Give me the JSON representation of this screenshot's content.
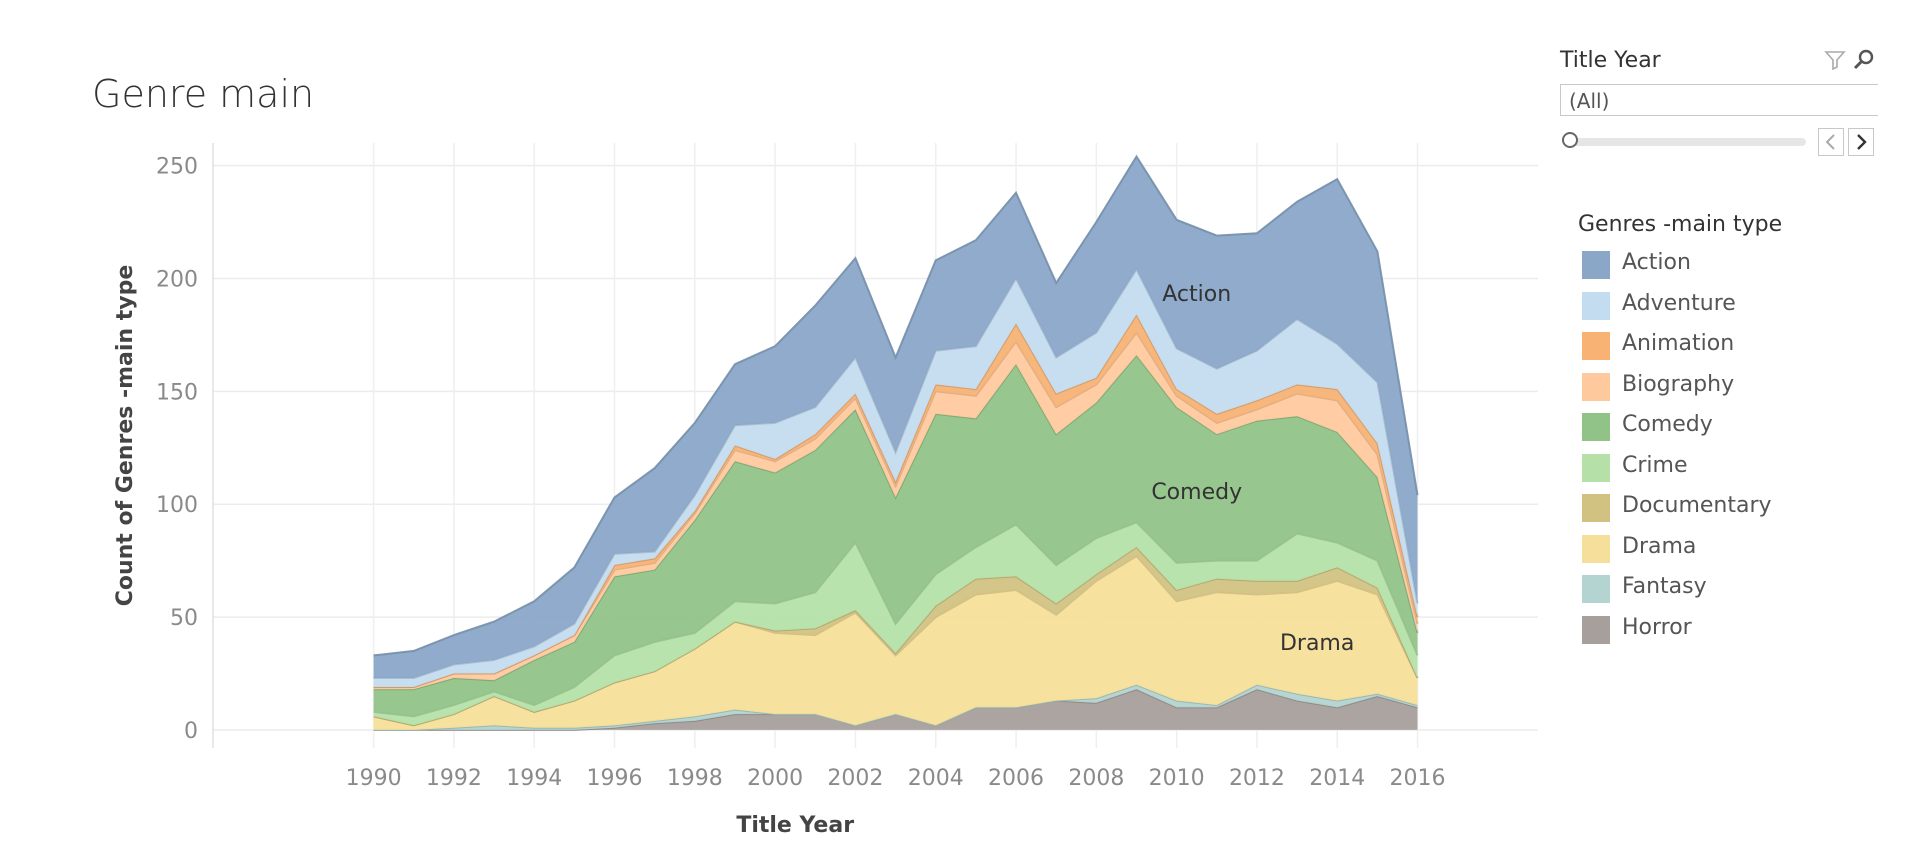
{
  "chart_data": {
    "type": "area",
    "stacked": true,
    "title": "Genre main",
    "xlabel": "Title Year",
    "ylabel": "Count of Genres -main type",
    "ylim": [
      0,
      260
    ],
    "yticks": [
      0,
      50,
      100,
      150,
      200,
      250
    ],
    "xticks": [
      1990,
      1992,
      1994,
      1996,
      1998,
      2000,
      2002,
      2004,
      2006,
      2008,
      2010,
      2012,
      2014,
      2016
    ],
    "grid": true,
    "x": [
      1990,
      1991,
      1992,
      1993,
      1994,
      1995,
      1996,
      1997,
      1998,
      1999,
      2000,
      2001,
      2002,
      2003,
      2004,
      2005,
      2006,
      2007,
      2008,
      2009,
      2010,
      2011,
      2012,
      2013,
      2014,
      2015,
      2016
    ],
    "series": [
      {
        "name": "Horror",
        "color": "#a69f9c",
        "values": [
          0,
          0,
          0,
          0,
          0,
          0,
          1,
          3,
          4,
          7,
          7,
          7,
          2,
          7,
          2,
          10,
          10,
          13,
          12,
          18,
          10,
          10,
          18,
          13,
          10,
          15,
          10
        ]
      },
      {
        "name": "Fantasy",
        "color": "#b3d4d0",
        "values": [
          0,
          0,
          1,
          2,
          1,
          1,
          1,
          1,
          2,
          2,
          0,
          0,
          0,
          0,
          0,
          0,
          0,
          0,
          2,
          2,
          3,
          1,
          2,
          3,
          3,
          1,
          1
        ]
      },
      {
        "name": "Drama",
        "color": "#f6df9a",
        "values": [
          6,
          2,
          6,
          13,
          7,
          12,
          19,
          22,
          30,
          39,
          36,
          35,
          50,
          26,
          48,
          50,
          52,
          38,
          52,
          57,
          44,
          50,
          40,
          45,
          53,
          44,
          12
        ]
      },
      {
        "name": "Documentary",
        "color": "#d2c282",
        "values": [
          0,
          0,
          0,
          0,
          0,
          0,
          0,
          0,
          0,
          0,
          1,
          3,
          1,
          1,
          5,
          7,
          6,
          5,
          3,
          4,
          5,
          6,
          6,
          5,
          6,
          3,
          0
        ]
      },
      {
        "name": "Crime",
        "color": "#b5e1a9",
        "values": [
          2,
          4,
          4,
          2,
          3,
          6,
          12,
          13,
          7,
          9,
          12,
          16,
          30,
          13,
          14,
          14,
          23,
          17,
          16,
          11,
          12,
          8,
          9,
          21,
          11,
          12,
          10
        ]
      },
      {
        "name": "Comedy",
        "color": "#91c388",
        "values": [
          10,
          12,
          12,
          5,
          20,
          20,
          35,
          32,
          50,
          62,
          58,
          63,
          59,
          56,
          71,
          57,
          71,
          58,
          60,
          74,
          69,
          56,
          62,
          52,
          49,
          37,
          10
        ]
      },
      {
        "name": "Biography",
        "color": "#ffc99e",
        "values": [
          1,
          1,
          2,
          3,
          2,
          3,
          3,
          3,
          3,
          5,
          5,
          5,
          5,
          5,
          10,
          10,
          10,
          12,
          8,
          10,
          5,
          5,
          5,
          10,
          14,
          10,
          4
        ]
      },
      {
        "name": "Animation",
        "color": "#f7b274",
        "values": [
          0,
          0,
          0,
          0,
          0,
          0,
          2,
          2,
          1,
          2,
          1,
          2,
          2,
          2,
          3,
          3,
          8,
          6,
          3,
          8,
          3,
          4,
          4,
          4,
          5,
          5,
          3
        ]
      },
      {
        "name": "Adventure",
        "color": "#c4dcef",
        "values": [
          4,
          4,
          4,
          6,
          4,
          5,
          5,
          3,
          7,
          9,
          16,
          12,
          16,
          13,
          15,
          19,
          20,
          16,
          20,
          20,
          18,
          20,
          22,
          29,
          20,
          27,
          6
        ]
      },
      {
        "name": "Action",
        "color": "#8aa7c8",
        "values": [
          10,
          12,
          13,
          17,
          20,
          25,
          25,
          37,
          32,
          27,
          34,
          45,
          44,
          42,
          40,
          47,
          38,
          33,
          49,
          50,
          57,
          59,
          52,
          52,
          73,
          58,
          48
        ]
      }
    ],
    "annotations": [
      "Action",
      "Comedy",
      "Drama"
    ]
  },
  "filter": {
    "title": "Title Year",
    "selected": "(All)",
    "funnel_icon": "funnel-icon",
    "search_icon": "search-icon",
    "prev_icon": "chevron-left-icon",
    "next_icon": "chevron-right-icon"
  },
  "legend": {
    "title": "Genres -main type",
    "items": [
      {
        "label": "Action",
        "color": "#8aa7c8"
      },
      {
        "label": "Adventure",
        "color": "#c4dcef"
      },
      {
        "label": "Animation",
        "color": "#f7b274"
      },
      {
        "label": "Biography",
        "color": "#ffc99e"
      },
      {
        "label": "Comedy",
        "color": "#91c388"
      },
      {
        "label": "Crime",
        "color": "#b5e1a9"
      },
      {
        "label": "Documentary",
        "color": "#d2c282"
      },
      {
        "label": "Drama",
        "color": "#f6df9a"
      },
      {
        "label": "Fantasy",
        "color": "#b3d4d0"
      },
      {
        "label": "Horror",
        "color": "#a69f9c"
      }
    ]
  }
}
